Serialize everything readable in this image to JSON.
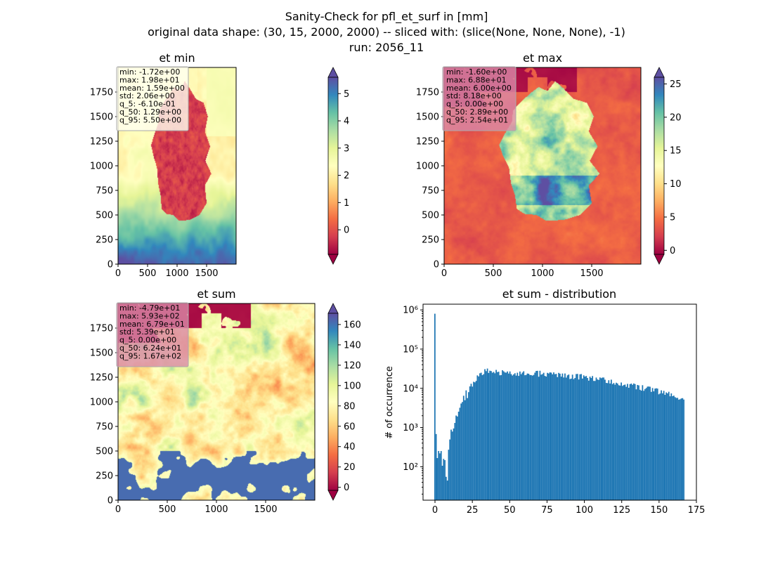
{
  "figure": {
    "title_lines": [
      "Sanity-Check for pfl_et_surf in [mm]",
      "original data shape: (30, 15, 2000, 2000) -- sliced with: (slice(None, None, None), -1)",
      "run: 2056_11"
    ]
  },
  "colormap": "Spectral",
  "chart_data": [
    {
      "type": "heatmap",
      "title": "et min",
      "xlabel": "",
      "ylabel": "",
      "xlim": [
        0,
        2000
      ],
      "ylim": [
        0,
        2000
      ],
      "xticks": [
        0,
        500,
        1000,
        1500
      ],
      "yticks": [
        0,
        250,
        500,
        750,
        1000,
        1250,
        1500,
        1750
      ],
      "colorbar": {
        "min": -0.9,
        "max": 5.6,
        "extend": "both",
        "ticks": [
          0,
          1,
          2,
          3,
          4,
          5
        ]
      },
      "stats": [
        "min: -1.72e+00",
        "max: 1.98e+01",
        "mean: 1.59e+00",
        "std: 2.06e+00",
        "q_5: -6.10e-01",
        "q_50: 1.29e+00",
        "q_95: 5.50e+00"
      ],
      "stats_box_color": "#fffff0"
    },
    {
      "type": "heatmap",
      "title": "et max",
      "xlabel": "",
      "ylabel": "",
      "xlim": [
        0,
        2000
      ],
      "ylim": [
        0,
        2000
      ],
      "xticks": [
        0,
        500,
        1000,
        1500
      ],
      "yticks": [
        0,
        250,
        500,
        750,
        1000,
        1250,
        1500,
        1750
      ],
      "colorbar": {
        "min": -0.6,
        "max": 26,
        "extend": "both",
        "ticks": [
          0,
          5,
          10,
          15,
          20,
          25
        ]
      },
      "stats": [
        "min: -1.60e+00",
        "max: 6.88e+01",
        "mean: 6.00e+00",
        "std: 8.18e+00",
        "q_5: 0.00e+00",
        "q_50: 2.89e+00",
        "q_95: 2.54e+01"
      ],
      "stats_box_color": "#d98aa7"
    },
    {
      "type": "heatmap",
      "title": "et sum",
      "xlabel": "",
      "ylabel": "",
      "xlim": [
        0,
        2000
      ],
      "ylim": [
        0,
        2000
      ],
      "xticks": [
        0,
        500,
        1000,
        1500
      ],
      "yticks": [
        0,
        250,
        500,
        750,
        1000,
        1250,
        1500,
        1750
      ],
      "colorbar": {
        "min": -3,
        "max": 171,
        "extend": "both",
        "ticks": [
          0,
          20,
          40,
          60,
          80,
          100,
          120,
          140,
          160
        ]
      },
      "stats": [
        "min: -4.79e+01",
        "max: 5.93e+02",
        "mean: 6.79e+01",
        "std: 5.39e+01",
        "q_5: 0.00e+00",
        "q_50: 6.24e+01",
        "q_95: 1.67e+02"
      ],
      "stats_box_color": "#d98aa7"
    },
    {
      "type": "bar",
      "title": "et sum - distribution",
      "xlabel": "",
      "ylabel": "# of occurrence",
      "log_y": true,
      "xlim": [
        -8,
        175
      ],
      "ylim": [
        14,
        1400000
      ],
      "xticks": [
        0,
        25,
        50,
        75,
        100,
        125,
        150,
        175
      ],
      "yticks": [
        {
          "value": 100,
          "label": "10²"
        },
        {
          "value": 1000,
          "label": "10³"
        },
        {
          "value": 10000,
          "label": "10⁴"
        },
        {
          "value": 100000,
          "label": "10⁵"
        },
        {
          "value": 1000000,
          "label": "10⁶"
        }
      ],
      "bar_color": "#1f77b4",
      "bin_edges_range": [
        -0.5,
        167
      ],
      "bins": 200,
      "anchors": [
        [
          0,
          800000
        ],
        [
          1,
          70
        ],
        [
          2,
          300
        ],
        [
          3,
          200
        ],
        [
          4,
          280
        ],
        [
          5,
          100
        ],
        [
          6,
          180
        ],
        [
          7,
          130
        ],
        [
          8,
          20
        ],
        [
          9,
          300
        ],
        [
          10,
          600
        ],
        [
          12,
          1000
        ],
        [
          15,
          2000
        ],
        [
          18,
          4000
        ],
        [
          21,
          7000
        ],
        [
          24,
          11000
        ],
        [
          27,
          17000
        ],
        [
          30,
          24000
        ],
        [
          35,
          28000
        ],
        [
          40,
          26000
        ],
        [
          50,
          25000
        ],
        [
          60,
          25000
        ],
        [
          70,
          24000
        ],
        [
          80,
          23000
        ],
        [
          90,
          21000
        ],
        [
          100,
          20000
        ],
        [
          110,
          17000
        ],
        [
          120,
          14000
        ],
        [
          130,
          12000
        ],
        [
          140,
          10000
        ],
        [
          150,
          8500
        ],
        [
          160,
          7000
        ],
        [
          167,
          5000
        ]
      ]
    }
  ]
}
